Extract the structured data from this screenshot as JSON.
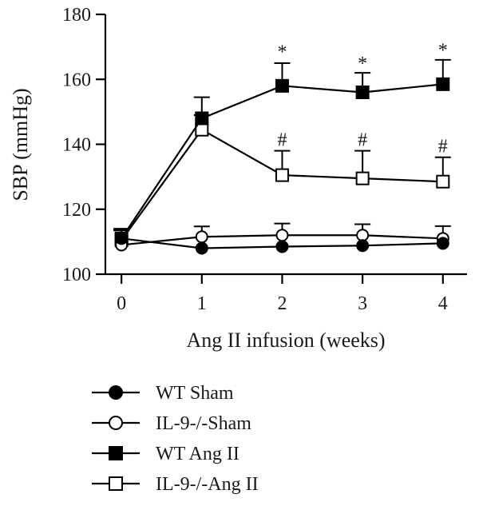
{
  "chart_data": {
    "type": "line",
    "xlabel": "Ang II infusion (weeks)",
    "ylabel": "SBP (mmHg)",
    "x": [
      0,
      1,
      2,
      3,
      4
    ],
    "xticks": [
      "0",
      "1",
      "2",
      "3",
      "4"
    ],
    "xlim": [
      -0.2,
      4.3
    ],
    "ylim": [
      100,
      180
    ],
    "yticks": [
      "100",
      "120",
      "140",
      "160",
      "180"
    ],
    "grid": false,
    "legend_position": "bottom",
    "series": [
      {
        "name": "WT Sham",
        "values": [
          111,
          108,
          108.5,
          108.8,
          109.5
        ],
        "errors": [
          2.5,
          0,
          0,
          0,
          0
        ],
        "marker": "filled-circle",
        "color": "#000000"
      },
      {
        "name": "IL-9-/-Sham",
        "values": [
          109,
          111.5,
          112,
          112,
          111
        ],
        "errors": [
          0,
          3.2,
          3.6,
          3.4,
          3.8
        ],
        "marker": "open-circle",
        "color": "#000000"
      },
      {
        "name": "WT Ang II",
        "values": [
          111,
          148,
          158,
          156,
          158.5
        ],
        "errors": [
          3,
          6.5,
          7,
          6,
          7.5
        ],
        "marker": "filled-square",
        "color": "#000000"
      },
      {
        "name": "IL-9-/-Ang II",
        "values": [
          110.5,
          144.5,
          130.5,
          129.5,
          128.5
        ],
        "errors": [
          3,
          4.5,
          7.5,
          8.5,
          7.5
        ],
        "marker": "open-square",
        "color": "#000000"
      }
    ],
    "annotations": [
      {
        "text": "*",
        "x": 2,
        "y": 168.5
      },
      {
        "text": "*",
        "x": 3,
        "y": 165
      },
      {
        "text": "*",
        "x": 4,
        "y": 169
      },
      {
        "text": "#",
        "x": 2,
        "y": 141.5
      },
      {
        "text": "#",
        "x": 3,
        "y": 141.5
      },
      {
        "text": "#",
        "x": 4,
        "y": 139.5
      }
    ]
  }
}
